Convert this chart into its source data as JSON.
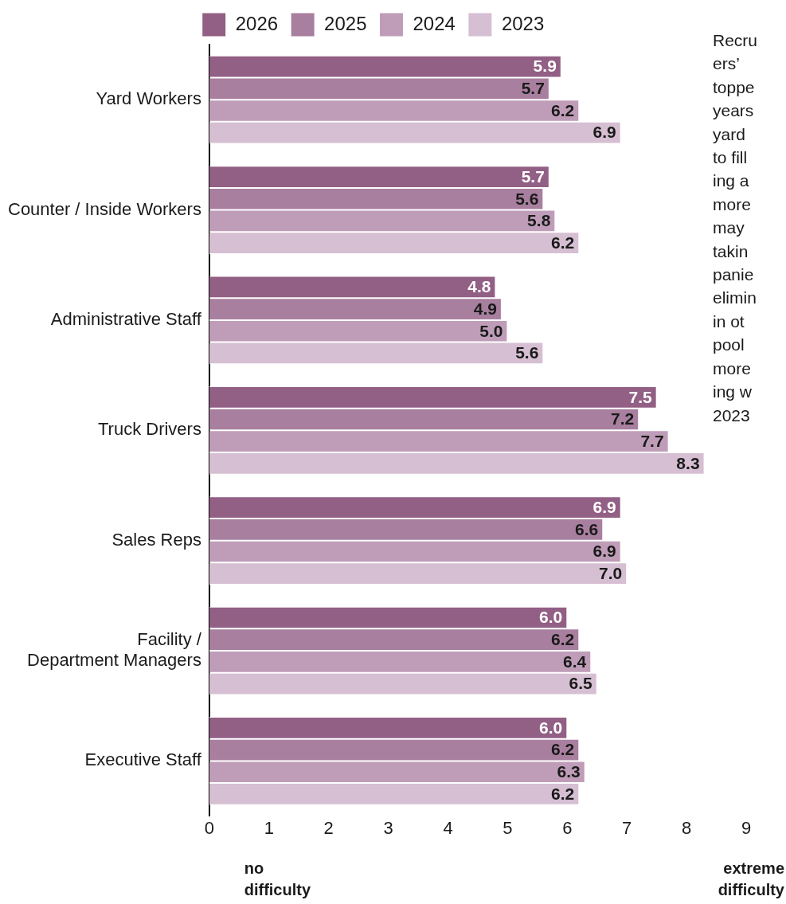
{
  "chart_data": {
    "type": "bar",
    "orientation": "horizontal",
    "categories": [
      "Yard Workers",
      "Counter / Inside Workers",
      "Administrative Staff",
      "Truck Drivers",
      "Sales Reps",
      "Facility / Department Managers",
      "Executive Staff"
    ],
    "series": [
      {
        "name": "2026",
        "color": "#925f85",
        "values": [
          5.9,
          5.7,
          4.8,
          7.5,
          6.9,
          6.0,
          6.0
        ],
        "value_labels": [
          "5.9",
          "5.7",
          "4.8",
          "7.5",
          "6.9",
          "6.0",
          "6.0"
        ]
      },
      {
        "name": "2025",
        "color": "#a87f9e",
        "values": [
          5.7,
          5.6,
          4.9,
          7.2,
          6.6,
          6.2,
          6.2
        ],
        "value_labels": [
          "5.7",
          "5.6",
          "4.9",
          "7.2",
          "6.6",
          "6.2",
          "6.2"
        ]
      },
      {
        "name": "2024",
        "color": "#bf9db8",
        "values": [
          6.2,
          5.8,
          5.0,
          7.7,
          6.9,
          6.4,
          6.3
        ],
        "value_labels": [
          "6.2",
          "5.8",
          "5.0",
          "7.7",
          "6.9",
          "6.4",
          "6.3"
        ]
      },
      {
        "name": "2023",
        "color": "#d6bfd2",
        "values": [
          6.9,
          6.2,
          5.6,
          8.3,
          7.0,
          6.5,
          6.2
        ],
        "value_labels": [
          "6.9",
          "6.2",
          "5.6",
          "8.3",
          "7.0",
          "6.5",
          "6.2"
        ]
      }
    ],
    "xlim": [
      0,
      9
    ],
    "xticks": [
      0,
      1,
      2,
      3,
      4,
      5,
      6,
      7,
      8,
      9
    ],
    "legend": "top",
    "grid": false,
    "annotations": [
      "no\ndifficulty",
      "extreme\ndifficulty",
      "Recru\ners’\ntoppe\nyears\nyard\nto fill\ning a\nmore\nmay\ntakin\npanie\nelimin\nin ot\npool\nmore\ning w\n2023"
    ]
  }
}
